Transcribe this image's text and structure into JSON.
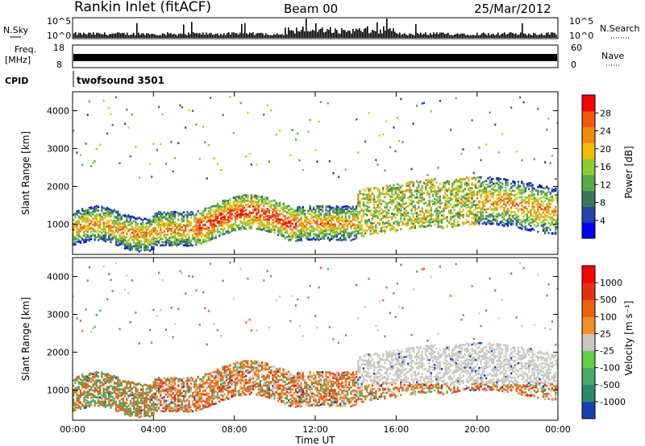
{
  "header": {
    "title": "Rankin Inlet (fitACF)",
    "beam": "Beam 00",
    "date": "25/Mar/2012"
  },
  "top_panels": {
    "nsky_label": "N.Sky",
    "nsearch_label": "N.Search",
    "nsky_ticks": [
      "10^5",
      "10^0"
    ],
    "freq_label": "Freq.",
    "freq_unit": "[MHz]",
    "freq_ticks": [
      "18",
      "8"
    ],
    "nave_label": "Nave",
    "nave_ticks": [
      "60",
      "0"
    ],
    "cpid_label": "CPID",
    "cpid_value": "twofsound 3501"
  },
  "chart_data": [
    {
      "type": "heatmap",
      "name": "power",
      "ylabel": "Slant Range [km]",
      "yticks": [
        1000,
        2000,
        3000,
        4000
      ],
      "ylim": [
        200,
        4500
      ],
      "xlim": [
        0,
        24
      ],
      "colorbar_label": "Power [dB]",
      "colorbar_ticks": [
        4,
        8,
        12,
        16,
        20,
        24,
        28
      ],
      "colorbar_colors": [
        "#0000ff",
        "#2244aa",
        "#3a7a5a",
        "#5aa84a",
        "#8ccc33",
        "#f0c000",
        "#f08a10",
        "#ee5a10",
        "#ff0000"
      ]
    },
    {
      "type": "heatmap",
      "name": "velocity",
      "ylabel": "Slant Range [km]",
      "yticks": [
        1000,
        2000,
        3000,
        4000
      ],
      "ylim": [
        200,
        4500
      ],
      "xlim": [
        0,
        24
      ],
      "xlabel": "Time UT",
      "xticks": [
        "00:00",
        "04:00",
        "08:00",
        "12:00",
        "16:00",
        "20:00",
        "00:00"
      ],
      "colorbar_label": "Velocity [m s⁻¹]",
      "colorbar_ticks": [
        "1000",
        "500",
        "100",
        "25",
        "-25",
        "-100",
        "-500",
        "-1000"
      ],
      "colorbar_colors": [
        "#1840b0",
        "#2a8a6a",
        "#4aa860",
        "#66cc44",
        "#c8c8c0",
        "#f09020",
        "#ee6010",
        "#e83010",
        "#ff0000"
      ]
    }
  ]
}
